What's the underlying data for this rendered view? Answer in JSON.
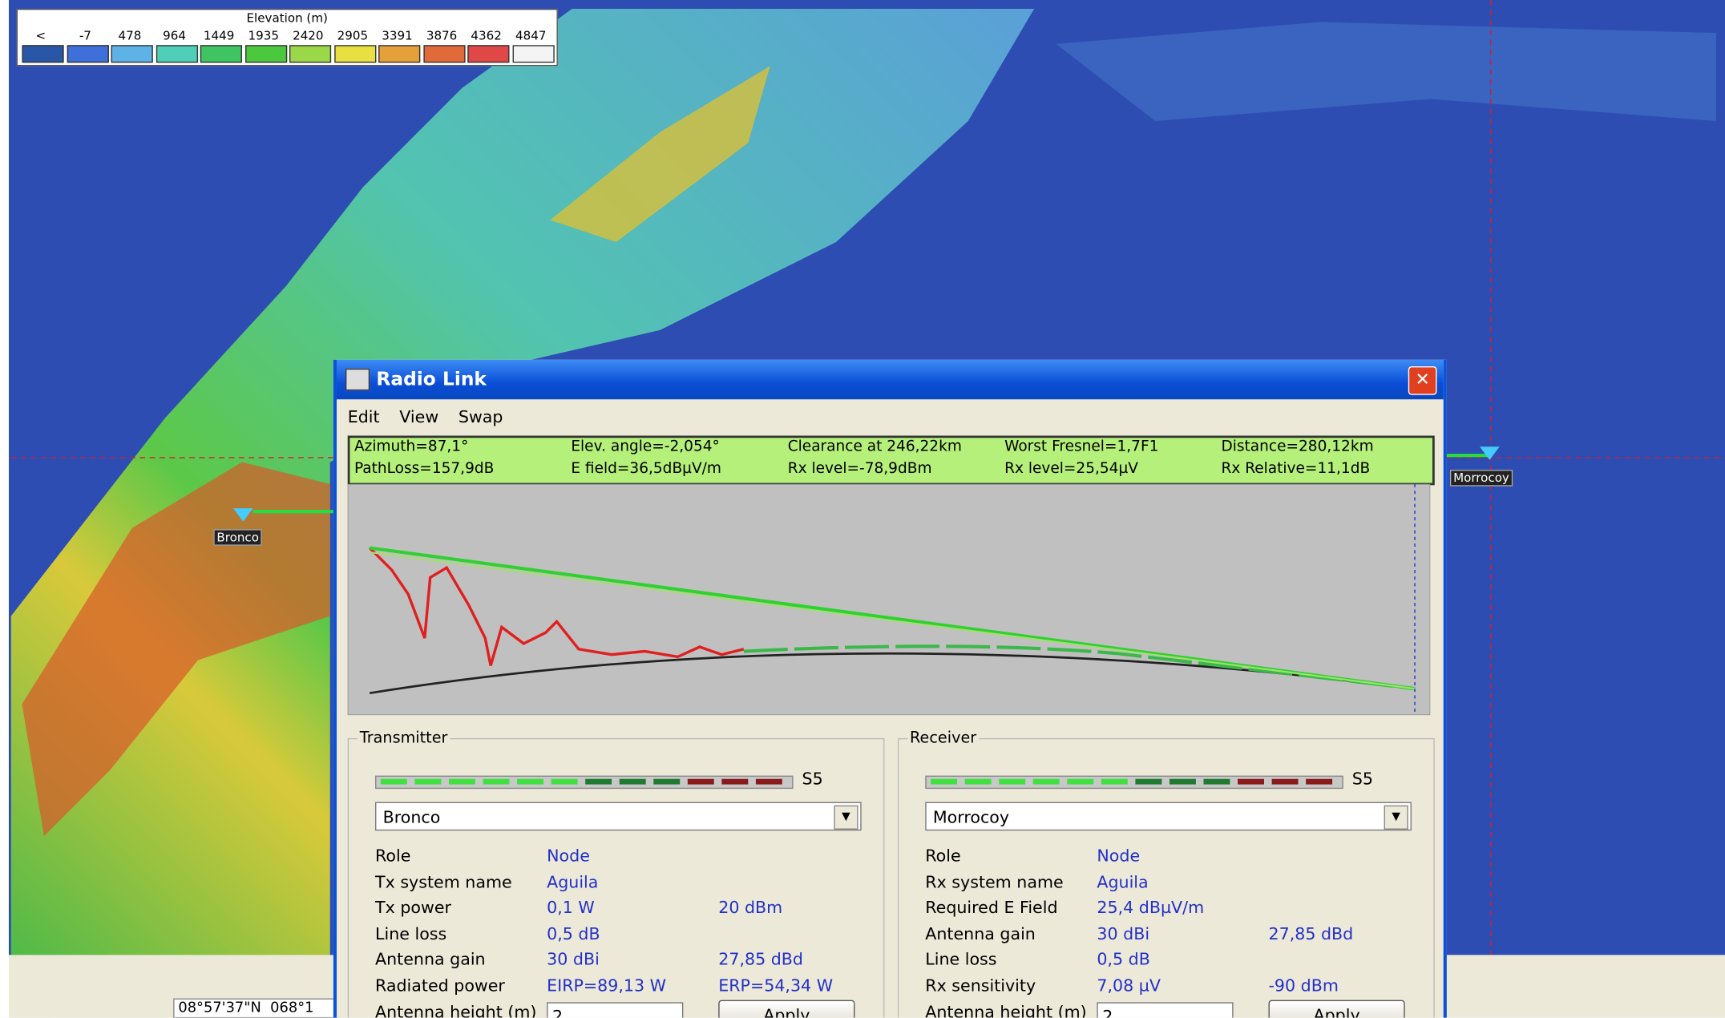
{
  "legend": {
    "title": "Elevation (m)",
    "labels": [
      "<",
      "-7",
      "478",
      "964",
      "1449",
      "1935",
      "2420",
      "2905",
      "3391",
      "3876",
      "4362",
      "4847"
    ]
  },
  "map_labels": [
    "Bronco",
    "Morrocoy"
  ],
  "status_bar": "08°57'37\"N  068°1",
  "window": {
    "title": "Radio Link",
    "menu": [
      "Edit",
      "View",
      "Swap"
    ],
    "summary": [
      [
        "Azimuth=87,1°",
        "Elev. angle=-2,054°",
        "Clearance at 246,22km",
        "Worst Fresnel=1,7F1",
        "Distance=280,12km"
      ],
      [
        "PathLoss=157,9dB",
        "E field=36,5dBµV/m",
        "Rx level=-78,9dBm",
        "Rx level=25,54µV",
        "Rx Relative=11,1dB"
      ]
    ],
    "transmitter": {
      "group": "Transmitter",
      "signal": "S5",
      "unit": "Bronco",
      "fields": [
        [
          "Role",
          "Node"
        ],
        [
          "Tx system name",
          "Aguila"
        ],
        [
          "Tx power",
          "0,1 W",
          "20 dBm"
        ],
        [
          "Line loss",
          "0,5 dB"
        ],
        [
          "Antenna gain",
          "30 dBi",
          "27,85 dBd"
        ],
        [
          "Radiated power",
          "EIRP=89,13 W",
          "ERP=54,34 W"
        ]
      ],
      "height_label": "Antenna height (m)",
      "height": "2",
      "button": "Apply"
    },
    "receiver": {
      "group": "Receiver",
      "signal": "S5",
      "unit": "Morrocoy",
      "fields": [
        [
          "Role",
          "Node"
        ],
        [
          "Rx system name",
          "Aguila"
        ],
        [
          "Required E Field",
          "25,4 dBµV/m"
        ],
        [
          "Antenna gain",
          "30 dBi",
          "27,85 dBd"
        ],
        [
          "Line loss",
          "0,5 dB"
        ],
        [
          "Rx sensitivity",
          "7,08 µV",
          "-90 dBm"
        ]
      ],
      "height_label": "Antenna height (m)",
      "height": "2",
      "button": "Apply"
    }
  }
}
